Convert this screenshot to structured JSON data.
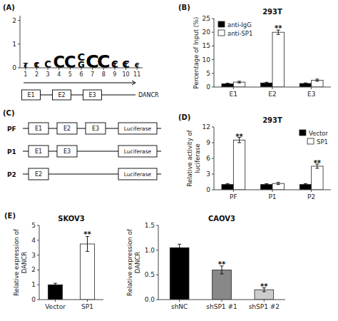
{
  "chart_data": [
    {
      "type": "sequence_logo",
      "annotations": [
        {
          "text": "(A)"
        }
      ],
      "xlim": [
        0.5,
        11.5
      ],
      "ylim": [
        0,
        2.2
      ],
      "xticks": [
        1,
        2,
        3,
        4,
        5,
        6,
        7,
        8,
        9,
        10,
        11
      ],
      "yticks": [
        0,
        1,
        2
      ],
      "letters": [
        {
          "x": 1,
          "letter": "T",
          "size": 7,
          "y": 0.0
        },
        {
          "x": 1,
          "letter": "C",
          "size": 5,
          "y": 0.0
        },
        {
          "x": 2,
          "letter": "T",
          "size": 7,
          "y": 0.0
        },
        {
          "x": 2,
          "letter": "C",
          "size": 8,
          "y": 0.0
        },
        {
          "x": 3,
          "letter": "C",
          "size": 10,
          "y": 0.0
        },
        {
          "x": 4,
          "letter": "C",
          "size": 17,
          "y": 0.0
        },
        {
          "x": 5,
          "letter": "C",
          "size": 17,
          "y": 0.0
        },
        {
          "x": 6,
          "letter": "G",
          "size": 9,
          "y": 0.0
        },
        {
          "x": 6,
          "letter": "C",
          "size": 11,
          "y": 0.3
        },
        {
          "x": 7,
          "letter": "C",
          "size": 19,
          "y": 0.0
        },
        {
          "x": 8,
          "letter": "C",
          "size": 19,
          "y": 0.0
        },
        {
          "x": 9,
          "letter": "C",
          "size": 10,
          "y": 0.0
        },
        {
          "x": 9,
          "letter": "T",
          "size": 7,
          "y": 0.0
        },
        {
          "x": 10,
          "letter": "C",
          "size": 11,
          "y": 0.0
        },
        {
          "x": 10,
          "letter": "T",
          "size": 7,
          "y": 0.0
        },
        {
          "x": 11,
          "letter": "C",
          "size": 7,
          "y": 0.0
        },
        {
          "x": 11,
          "letter": "T",
          "size": 5,
          "y": 0.0
        }
      ],
      "gene": {
        "name": "DANCR",
        "elements": [
          "E1",
          "E2",
          "E3"
        ]
      }
    },
    {
      "type": "bar",
      "title": "293T",
      "ylabel": "Percentage of Input (%)",
      "categories": [
        "E1",
        "E2",
        "E3"
      ],
      "series": [
        {
          "name": "anti-IgG",
          "color": "black",
          "values": [
            1.2,
            1.5,
            1.3
          ],
          "errors": [
            0.2,
            0.25,
            0.2
          ]
        },
        {
          "name": "anti-SP1",
          "color": "white",
          "values": [
            1.8,
            20.0,
            2.5
          ],
          "errors": [
            0.3,
            0.8,
            0.4
          ]
        }
      ],
      "ylim": [
        0,
        25
      ],
      "yticks": [
        0,
        5,
        10,
        15,
        20,
        25
      ],
      "legend": "upper left",
      "grid": false,
      "annotations": [
        {
          "text": "(B)"
        },
        {
          "text": "**",
          "category": "E2",
          "series": "anti-SP1",
          "y": 21.5
        }
      ]
    },
    {
      "type": "diagram",
      "annotations": [
        {
          "text": "(C)"
        }
      ],
      "constructs": [
        {
          "name": "PF",
          "elements": [
            "E1",
            "E2",
            "E3"
          ],
          "reporter": "Luciferase"
        },
        {
          "name": "P1",
          "elements": [
            "E1",
            "E3"
          ],
          "reporter": "Luciferase"
        },
        {
          "name": "P2",
          "elements": [
            "E2"
          ],
          "reporter": "Luciferase"
        }
      ]
    },
    {
      "type": "bar",
      "title": "293T",
      "ylabel": "Relative activity of\nluciferase",
      "categories": [
        "PF",
        "P1",
        "P2"
      ],
      "series": [
        {
          "name": "Vector",
          "color": "black",
          "values": [
            1.0,
            1.0,
            1.0
          ],
          "errors": [
            0.15,
            0.15,
            0.15
          ]
        },
        {
          "name": "SP1",
          "color": "white",
          "values": [
            9.5,
            1.2,
            4.5
          ],
          "errors": [
            0.5,
            0.2,
            0.4
          ]
        }
      ],
      "ylim": [
        0,
        12
      ],
      "yticks": [
        0,
        3,
        6,
        9,
        12
      ],
      "legend": "upper right",
      "grid": false,
      "annotations": [
        {
          "text": "(D)"
        },
        {
          "text": "**",
          "category": "PF",
          "series": "SP1",
          "y": 10.2
        },
        {
          "text": "**",
          "category": "P2",
          "series": "SP1",
          "y": 5.2
        }
      ]
    },
    {
      "type": "bar",
      "title": "SKOV3",
      "ylabel": "Relative expression of\nDANCR",
      "categories": [
        "Vector",
        "SP1"
      ],
      "series": [
        {
          "colors": [
            "black",
            "white"
          ],
          "values": [
            1.0,
            3.75
          ],
          "errors": [
            0.1,
            0.5
          ]
        }
      ],
      "ylim": [
        0,
        5
      ],
      "yticks": [
        0,
        1,
        2,
        3,
        4,
        5
      ],
      "grid": false,
      "annotations": [
        {
          "text": "(E)"
        },
        {
          "text": "**",
          "category": "SP1",
          "y": 4.4
        }
      ]
    },
    {
      "type": "bar",
      "title": "CAOV3",
      "ylabel": "Relative expression of\nDANCR",
      "categories": [
        "shNC",
        "shSP1 #1",
        "shSP1 #2"
      ],
      "series": [
        {
          "colors": [
            "black",
            "#888888",
            "#cccccc"
          ],
          "values": [
            1.05,
            0.6,
            0.2
          ],
          "errors": [
            0.07,
            0.08,
            0.04
          ]
        }
      ],
      "ylim": [
        0,
        1.5
      ],
      "yticks": [
        {
          "value": 0,
          "label": "0.0"
        },
        0.5,
        {
          "value": 1,
          "label": "1.0"
        },
        1.5
      ],
      "grid": false,
      "annotations": [
        {
          "text": "**",
          "category": "shSP1 #1",
          "y": 0.72
        },
        {
          "text": "**",
          "category": "shSP1 #2",
          "y": 0.28
        }
      ]
    }
  ]
}
